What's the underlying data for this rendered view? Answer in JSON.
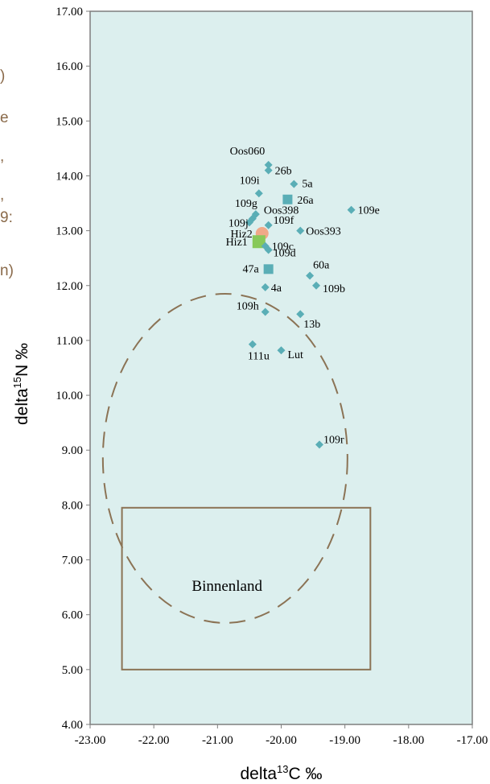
{
  "chart_data": {
    "type": "scatter",
    "xlabel": {
      "prefix": "delta",
      "sup": "13",
      "suffix": "C ‰"
    },
    "ylabel": {
      "prefix": "delta",
      "sup": "15",
      "suffix": "N ‰"
    },
    "xlim": [
      -23,
      -17
    ],
    "ylim": [
      4,
      17
    ],
    "x_ticks": [
      "-23.00",
      "-22.00",
      "-21.00",
      "-20.00",
      "-19.00",
      "-18.00",
      "-17.00"
    ],
    "y_ticks": [
      "4.00",
      "5.00",
      "6.00",
      "7.00",
      "8.00",
      "9.00",
      "10.00",
      "11.00",
      "12.00",
      "13.00",
      "14.00",
      "15.00",
      "16.00",
      "17.00"
    ],
    "grid": false,
    "colors": {
      "plot_background": "#dcefee",
      "diamond": "#5aaeb6",
      "square": "#5aaeb6",
      "hiz1": "#88c95a",
      "hiz2": "#f0a888",
      "region_outline": "#8b7355",
      "frame": "#7f7f7f"
    },
    "points": [
      {
        "label": "Oos060",
        "x": -20.2,
        "y": 14.2,
        "marker": "diamond"
      },
      {
        "label": "26b",
        "x": -20.2,
        "y": 14.1,
        "marker": "diamond"
      },
      {
        "label": "5a",
        "x": -19.8,
        "y": 13.85,
        "marker": "diamond"
      },
      {
        "label": "109i",
        "x": -20.35,
        "y": 13.68,
        "marker": "diamond"
      },
      {
        "label": "26a",
        "x": -19.9,
        "y": 13.57,
        "marker": "square"
      },
      {
        "label": "109e",
        "x": -18.9,
        "y": 13.38,
        "marker": "diamond"
      },
      {
        "label": "109g",
        "x": -20.4,
        "y": 13.3,
        "marker": "diamond"
      },
      {
        "label": "Oos398",
        "x": -20.45,
        "y": 13.22,
        "marker": "diamond"
      },
      {
        "label": "109j",
        "x": -20.5,
        "y": 13.15,
        "marker": "diamond"
      },
      {
        "label": "109f",
        "x": -20.2,
        "y": 13.1,
        "marker": "diamond"
      },
      {
        "label": "Oos393",
        "x": -19.7,
        "y": 13.0,
        "marker": "diamond"
      },
      {
        "label": "Hiz2",
        "x": -20.3,
        "y": 12.95,
        "marker": "circle"
      },
      {
        "label": "Hiz1",
        "x": -20.35,
        "y": 12.8,
        "marker": "bigsquare"
      },
      {
        "label": "109c",
        "x": -20.25,
        "y": 12.72,
        "marker": "diamond"
      },
      {
        "label": "109d",
        "x": -20.2,
        "y": 12.65,
        "marker": "diamond"
      },
      {
        "label": "47a",
        "x": -20.2,
        "y": 12.3,
        "marker": "square"
      },
      {
        "label": "60a",
        "x": -19.55,
        "y": 12.18,
        "marker": "diamond"
      },
      {
        "label": "109b",
        "x": -19.45,
        "y": 12.0,
        "marker": "diamond"
      },
      {
        "label": "4a",
        "x": -20.25,
        "y": 11.97,
        "marker": "diamond"
      },
      {
        "label": "109h",
        "x": -20.25,
        "y": 11.52,
        "marker": "diamond"
      },
      {
        "label": "13b",
        "x": -19.7,
        "y": 11.48,
        "marker": "diamond"
      },
      {
        "label": "111u",
        "x": -20.45,
        "y": 10.93,
        "marker": "diamond"
      },
      {
        "label": "Lut",
        "x": -20.0,
        "y": 10.82,
        "marker": "diamond"
      },
      {
        "label": "109r",
        "x": -19.4,
        "y": 9.1,
        "marker": "diamond"
      }
    ],
    "annotations": [
      {
        "label": "Binnenland",
        "shape": "rectangle",
        "x_range": [
          -22.5,
          -18.6
        ],
        "y_range": [
          5.0,
          7.95
        ],
        "label_at": [
          -20.85,
          6.5
        ]
      },
      {
        "shape": "dashed-ellipse",
        "center": [
          -20.88,
          8.85
        ],
        "radius_x": 1.92,
        "radius_y": 3.0
      }
    ]
  },
  "cropped_fragments": [
    ")",
    "e",
    ",",
    ",",
    "9:",
    "n)"
  ]
}
